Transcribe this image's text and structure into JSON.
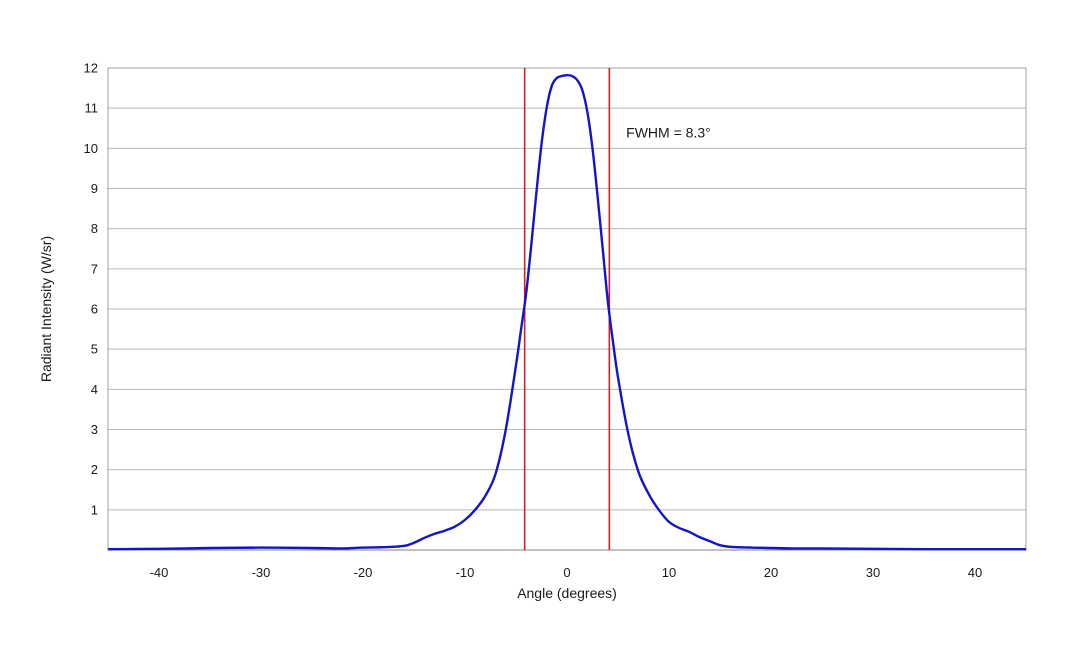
{
  "chart_data": {
    "type": "line",
    "title": "",
    "xlabel": "Angle (degrees)",
    "ylabel": "Radiant Intensity (W/sr)",
    "xlim": [
      -45,
      45
    ],
    "ylim": [
      0,
      12
    ],
    "xticks": [
      -40,
      -30,
      -20,
      -10,
      0,
      10,
      20,
      30,
      40
    ],
    "yticks": [
      1,
      2,
      3,
      4,
      5,
      6,
      7,
      8,
      9,
      10,
      11,
      12
    ],
    "grid": "horizontal",
    "legend": "none",
    "series": [
      {
        "color": "#1515c8",
        "x": [
          -45,
          -40,
          -35,
          -30,
          -25,
          -22,
          -20,
          -18,
          -16,
          -15,
          -14,
          -13,
          -12,
          -11,
          -10,
          -9,
          -8,
          -7,
          -6,
          -5,
          -4.5,
          -4,
          -3.5,
          -3,
          -2.5,
          -2,
          -1.5,
          -1,
          -0.5,
          0,
          0.5,
          1,
          1.5,
          2,
          2.5,
          3,
          3.5,
          4,
          4.5,
          5,
          6,
          7,
          8,
          9,
          10,
          11,
          12,
          13,
          14,
          15,
          16,
          18,
          20,
          22,
          25,
          30,
          35,
          40,
          45
        ],
        "y": [
          0.02,
          0.03,
          0.05,
          0.06,
          0.05,
          0.04,
          0.06,
          0.07,
          0.1,
          0.18,
          0.3,
          0.4,
          0.48,
          0.58,
          0.75,
          1.0,
          1.35,
          1.9,
          3.0,
          4.6,
          5.5,
          6.4,
          7.6,
          8.9,
          10.1,
          11.0,
          11.55,
          11.75,
          11.8,
          11.82,
          11.8,
          11.7,
          11.45,
          10.9,
          10.0,
          8.8,
          7.5,
          6.2,
          5.2,
          4.3,
          2.9,
          1.95,
          1.4,
          1.0,
          0.7,
          0.55,
          0.45,
          0.32,
          0.22,
          0.12,
          0.08,
          0.06,
          0.05,
          0.04,
          0.04,
          0.03,
          0.02,
          0.02,
          0.02
        ]
      }
    ],
    "markers": [
      {
        "type": "vline",
        "x": -4.15,
        "color": "#d42020"
      },
      {
        "type": "vline",
        "x": 4.15,
        "color": "#d42020"
      }
    ],
    "annotations": [
      {
        "text": "FWHM = 8.3°",
        "x": 5.8,
        "y": 10.4
      }
    ]
  }
}
